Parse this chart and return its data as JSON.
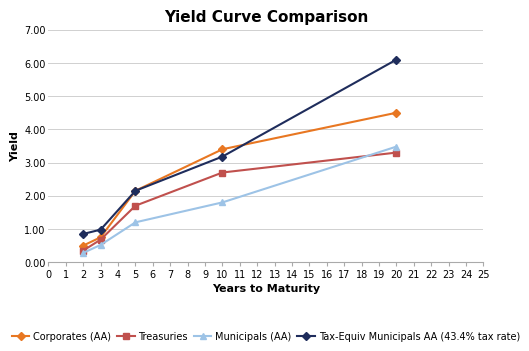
{
  "title": "Yield Curve Comparison",
  "xlabel": "Years to Maturity",
  "ylabel": "Yield",
  "xlim": [
    0,
    25
  ],
  "ylim": [
    0.0,
    7.0
  ],
  "yticks": [
    0.0,
    1.0,
    2.0,
    3.0,
    4.0,
    5.0,
    6.0,
    7.0
  ],
  "xticks": [
    0,
    1,
    2,
    3,
    4,
    5,
    6,
    7,
    8,
    9,
    10,
    11,
    12,
    13,
    14,
    15,
    16,
    17,
    18,
    19,
    20,
    21,
    22,
    23,
    24,
    25
  ],
  "series": [
    {
      "label": "Corporates (AA)",
      "x": [
        2,
        3,
        5,
        10,
        20
      ],
      "y": [
        0.5,
        0.75,
        2.15,
        3.4,
        4.5
      ],
      "color": "#E87722",
      "marker": "D",
      "markersize": 4,
      "linewidth": 1.5,
      "linestyle": "-"
    },
    {
      "label": "Treasuries",
      "x": [
        2,
        3,
        5,
        10,
        20
      ],
      "y": [
        0.35,
        0.68,
        1.7,
        2.7,
        3.3
      ],
      "color": "#C0504D",
      "marker": "s",
      "markersize": 4,
      "linewidth": 1.5,
      "linestyle": "-"
    },
    {
      "label": "Municipals (AA)",
      "x": [
        2,
        3,
        5,
        10,
        20
      ],
      "y": [
        0.28,
        0.52,
        1.2,
        1.8,
        3.48
      ],
      "color": "#9DC3E6",
      "marker": "^",
      "markersize": 4,
      "linewidth": 1.5,
      "linestyle": "-"
    },
    {
      "label": "Tax-Equiv Municipals AA (43.4% tax rate)",
      "x": [
        2,
        3,
        5,
        10,
        20
      ],
      "y": [
        0.85,
        0.98,
        2.15,
        3.18,
        6.1
      ],
      "color": "#1F2D5C",
      "marker": "D",
      "markersize": 4,
      "linewidth": 1.5,
      "linestyle": "-"
    }
  ],
  "background_color": "#FFFFFF",
  "grid_color": "#D0D0D0",
  "title_fontsize": 11,
  "axis_label_fontsize": 8,
  "tick_fontsize": 7,
  "legend_fontsize": 7
}
